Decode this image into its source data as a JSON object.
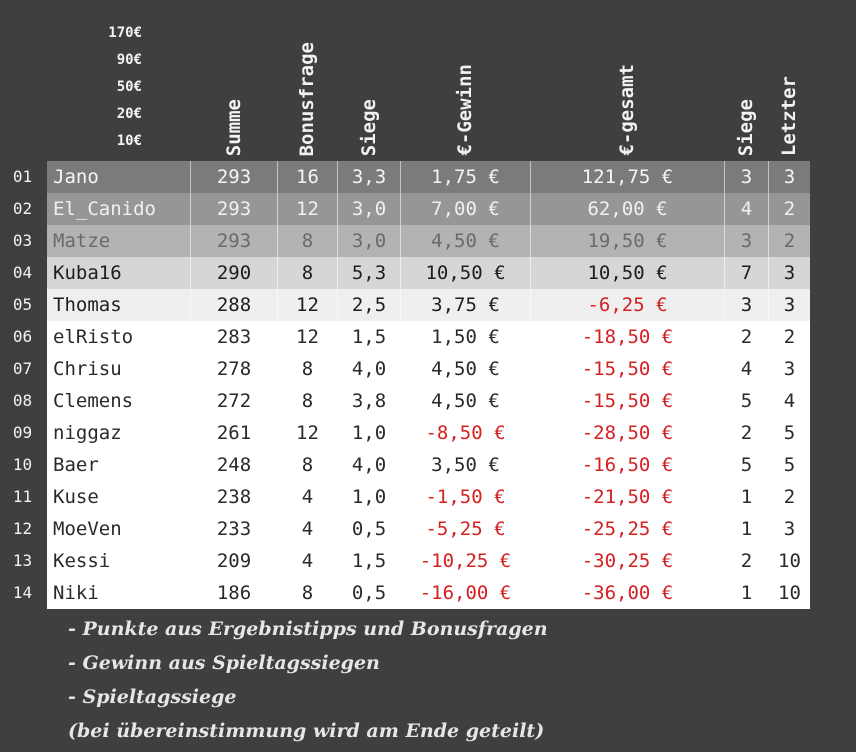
{
  "prizes": [
    "170€",
    "90€",
    "50€",
    "20€",
    "10€"
  ],
  "headers": {
    "summe": "Summe",
    "bonus": "Bonusfrage",
    "siege": "Siege",
    "gewinn": "€-Gewinn",
    "gesamt": "€-gesamt",
    "siege2": "Siege",
    "letzter": "Letzter"
  },
  "rows": [
    {
      "rank": "01",
      "name": "Jano",
      "summe": "293",
      "bonus": "16",
      "siege": "3,3",
      "gewinn": "1,75 €",
      "gesamt": "121,75 €",
      "siege2": "3",
      "letzter": "3"
    },
    {
      "rank": "02",
      "name": "El_Canido",
      "summe": "293",
      "bonus": "12",
      "siege": "3,0",
      "gewinn": "7,00 €",
      "gesamt": "62,00 €",
      "siege2": "4",
      "letzter": "2"
    },
    {
      "rank": "03",
      "name": "Matze",
      "summe": "293",
      "bonus": "8",
      "siege": "3,0",
      "gewinn": "4,50 €",
      "gesamt": "19,50 €",
      "siege2": "3",
      "letzter": "2"
    },
    {
      "rank": "04",
      "name": "Kuba16",
      "summe": "290",
      "bonus": "8",
      "siege": "5,3",
      "gewinn": "10,50 €",
      "gesamt": "10,50 €",
      "siege2": "7",
      "letzter": "3"
    },
    {
      "rank": "05",
      "name": "Thomas",
      "summe": "288",
      "bonus": "12",
      "siege": "2,5",
      "gewinn": "3,75 €",
      "gesamt": "-6,25 €",
      "siege2": "3",
      "letzter": "3"
    },
    {
      "rank": "06",
      "name": "elRisto",
      "summe": "283",
      "bonus": "12",
      "siege": "1,5",
      "gewinn": "1,50 €",
      "gesamt": "-18,50 €",
      "siege2": "2",
      "letzter": "2"
    },
    {
      "rank": "07",
      "name": "Chrisu",
      "summe": "278",
      "bonus": "8",
      "siege": "4,0",
      "gewinn": "4,50 €",
      "gesamt": "-15,50 €",
      "siege2": "4",
      "letzter": "3"
    },
    {
      "rank": "08",
      "name": "Clemens",
      "summe": "272",
      "bonus": "8",
      "siege": "3,8",
      "gewinn": "4,50 €",
      "gesamt": "-15,50 €",
      "siege2": "5",
      "letzter": "4"
    },
    {
      "rank": "09",
      "name": "niggaz",
      "summe": "261",
      "bonus": "12",
      "siege": "1,0",
      "gewinn": "-8,50 €",
      "gesamt": "-28,50 €",
      "siege2": "2",
      "letzter": "5"
    },
    {
      "rank": "10",
      "name": "Baer",
      "summe": "248",
      "bonus": "8",
      "siege": "4,0",
      "gewinn": "3,50 €",
      "gesamt": "-16,50 €",
      "siege2": "5",
      "letzter": "5"
    },
    {
      "rank": "11",
      "name": "Kuse",
      "summe": "238",
      "bonus": "4",
      "siege": "1,0",
      "gewinn": "-1,50 €",
      "gesamt": "-21,50 €",
      "siege2": "1",
      "letzter": "2"
    },
    {
      "rank": "12",
      "name": "MoeVen",
      "summe": "233",
      "bonus": "4",
      "siege": "0,5",
      "gewinn": "-5,25 €",
      "gesamt": "-25,25 €",
      "siege2": "1",
      "letzter": "3"
    },
    {
      "rank": "13",
      "name": "Kessi",
      "summe": "209",
      "bonus": "4",
      "siege": "1,5",
      "gewinn": "-10,25 €",
      "gesamt": "-30,25 €",
      "siege2": "2",
      "letzter": "10"
    },
    {
      "rank": "14",
      "name": "Niki",
      "summe": "186",
      "bonus": "8",
      "siege": "0,5",
      "gewinn": "-16,00 €",
      "gesamt": "-36,00 €",
      "siege2": "1",
      "letzter": "10"
    }
  ],
  "notes": [
    "- Punkte aus Ergebnistipps und Bonusfragen",
    "- Gewinn aus Spieltagssiegen",
    "- Spieltagssiege",
    "(bei übereinstimmung wird am Ende geteilt)"
  ]
}
